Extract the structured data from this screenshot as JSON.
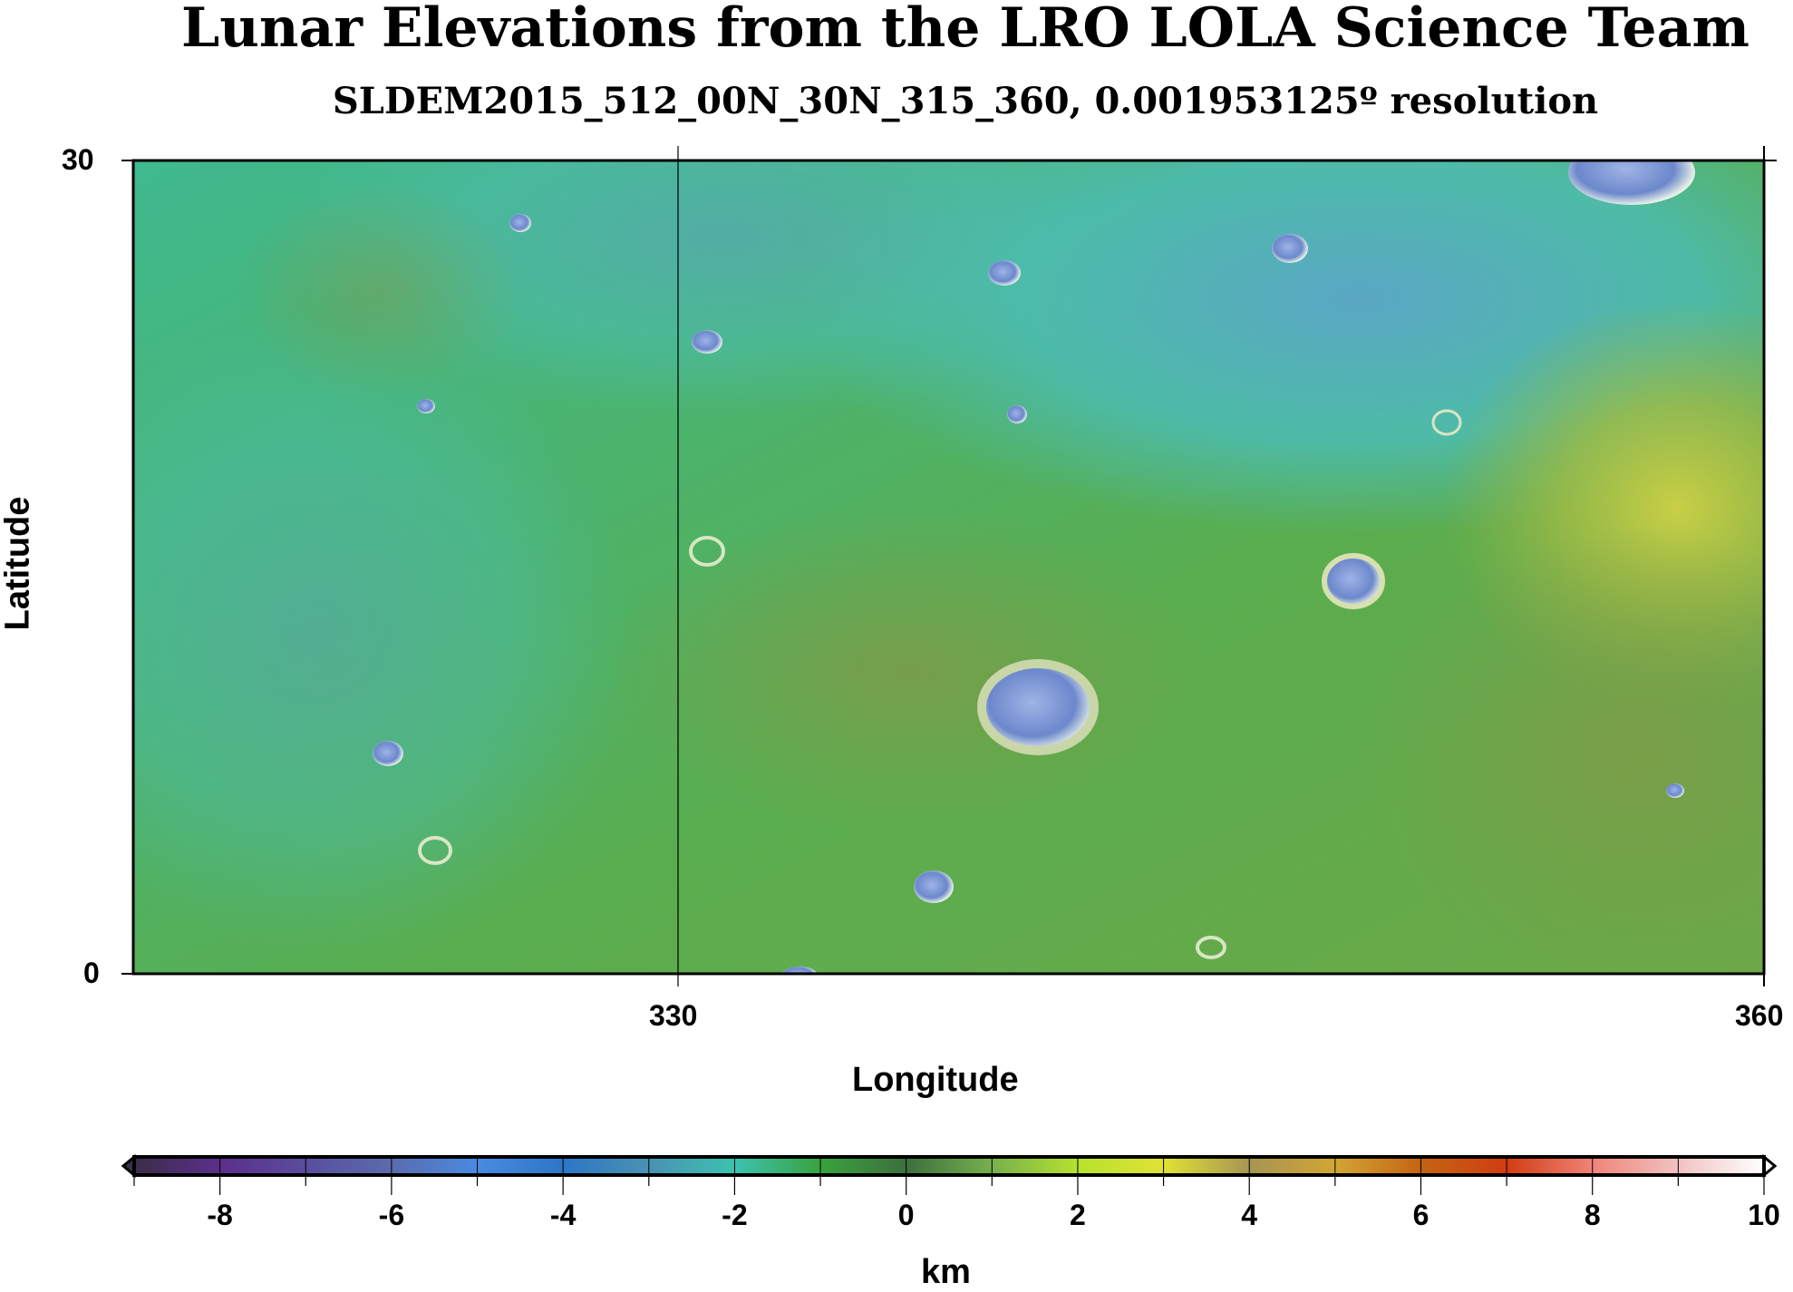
{
  "chart_data": {
    "type": "heatmap",
    "title": "Lunar Elevations from the LRO LOLA Science Team",
    "subtitle": "SLDEM2015_512_00N_30N_315_360, 0.001953125º resolution",
    "xlabel": "Longitude",
    "ylabel": "Latitude",
    "xlim": [
      315,
      360
    ],
    "ylim": [
      0,
      30
    ],
    "x_ticks": [
      "330",
      "360"
    ],
    "y_ticks": [
      "0",
      "30"
    ],
    "grid": "vertical line at 330",
    "colorbar": {
      "label": "km",
      "range": [
        -9,
        10
      ],
      "ticks": [
        "-8",
        "-6",
        "-4",
        "-2",
        "0",
        "2",
        "4",
        "6",
        "8",
        "10"
      ],
      "colors": [
        "#3a2e48",
        "#5b2f8c",
        "#5a4d9e",
        "#5a6cae",
        "#4a8ae2",
        "#2d76c6",
        "#4a92b2",
        "#3cc2b0",
        "#39a23e",
        "#3d6f3e",
        "#77b04e",
        "#b7e22e",
        "#e0e234",
        "#a69552",
        "#d3a534",
        "#c46412",
        "#d23c12",
        "#f08478",
        "#f1c2c2",
        "#ffffff"
      ],
      "orientation": "horizontal",
      "extend": "both"
    }
  }
}
